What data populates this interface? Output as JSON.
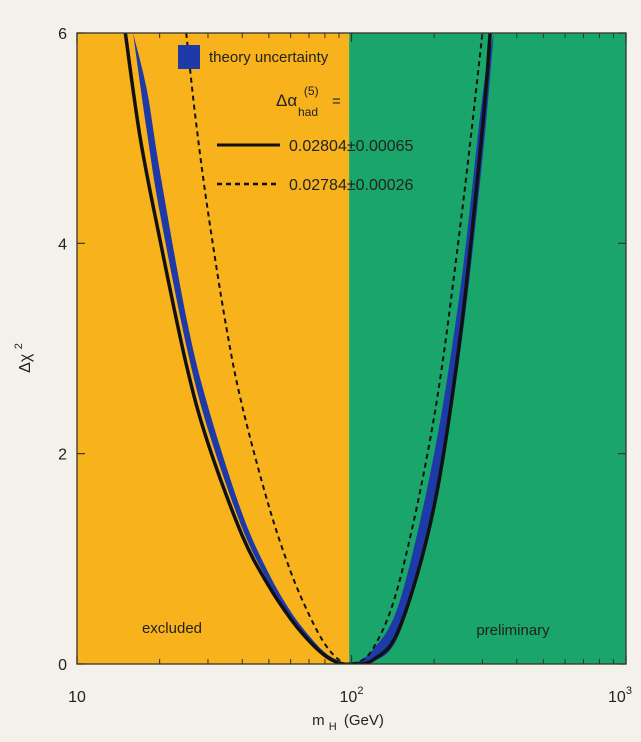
{
  "chart_data": {
    "type": "line",
    "x_scale": "log",
    "xlabel_main": "m",
    "xlabel_sub": "H",
    "xlabel_unit": "(GeV)",
    "xlim": [
      10,
      1000
    ],
    "ylim": [
      0,
      6
    ],
    "x_ticks": [
      {
        "value": 10,
        "base": "10",
        "exp": ""
      },
      {
        "value": 100,
        "base": "10",
        "exp": "2"
      },
      {
        "value": 1000,
        "base": "10",
        "exp": "3"
      }
    ],
    "y_ticks": [
      0,
      2,
      4,
      6
    ],
    "ylabel_main": "Δχ",
    "ylabel_sup": "2",
    "grid": false,
    "regions": [
      {
        "label": "excluded",
        "x_range": [
          10,
          98
        ],
        "color": "#f7b21c"
      },
      {
        "label": "preliminary",
        "x_range": [
          98,
          1000
        ],
        "color": "#1aa56a"
      }
    ],
    "legend": {
      "position": "top",
      "band_label": "theory uncertainty",
      "param_prefix": "Δα",
      "param_sup": "(5)",
      "param_sub": "had",
      "param_suffix": "=",
      "solid_label": "0.02804±0.00065",
      "dashed_label": "0.02784±0.00026"
    },
    "band": {
      "name": "theory uncertainty",
      "color": "#1d3aa8",
      "x": [
        16,
        18,
        20,
        25,
        30,
        40,
        50,
        60,
        70,
        80,
        90,
        100,
        120,
        150,
        200,
        250,
        300,
        330
      ],
      "y_low": [
        6.0,
        5.05,
        4.3,
        3.03,
        2.23,
        1.29,
        0.77,
        0.44,
        0.23,
        0.09,
        0.02,
        0.0,
        0.02,
        0.3,
        1.45,
        3.0,
        4.8,
        6.0
      ],
      "y_high": [
        6.0,
        5.45,
        4.7,
        3.3,
        2.45,
        1.43,
        0.86,
        0.5,
        0.27,
        0.11,
        0.03,
        0.0,
        0.14,
        0.6,
        2.0,
        3.6,
        5.4,
        6.0
      ]
    },
    "series": [
      {
        "name": "0.02804±0.00065",
        "style": "solid",
        "color": "#111111",
        "x": [
          15,
          17,
          20,
          25,
          30,
          40,
          50,
          60,
          70,
          80,
          90,
          100,
          120,
          150,
          200,
          250,
          300,
          320
        ],
        "y": [
          6.0,
          5.0,
          4.05,
          2.85,
          2.1,
          1.22,
          0.74,
          0.43,
          0.22,
          0.08,
          0.01,
          0.0,
          0.04,
          0.35,
          1.5,
          3.15,
          5.1,
          6.0
        ]
      },
      {
        "name": "0.02784±0.00026",
        "style": "dashed",
        "color": "#111111",
        "x": [
          25,
          27,
          30,
          35,
          40,
          50,
          60,
          70,
          80,
          90,
          100,
          120,
          150,
          200,
          250,
          300
        ],
        "y": [
          6.0,
          5.2,
          4.3,
          3.2,
          2.45,
          1.5,
          0.88,
          0.47,
          0.19,
          0.04,
          0.0,
          0.15,
          0.8,
          2.35,
          4.2,
          6.0
        ]
      }
    ]
  }
}
